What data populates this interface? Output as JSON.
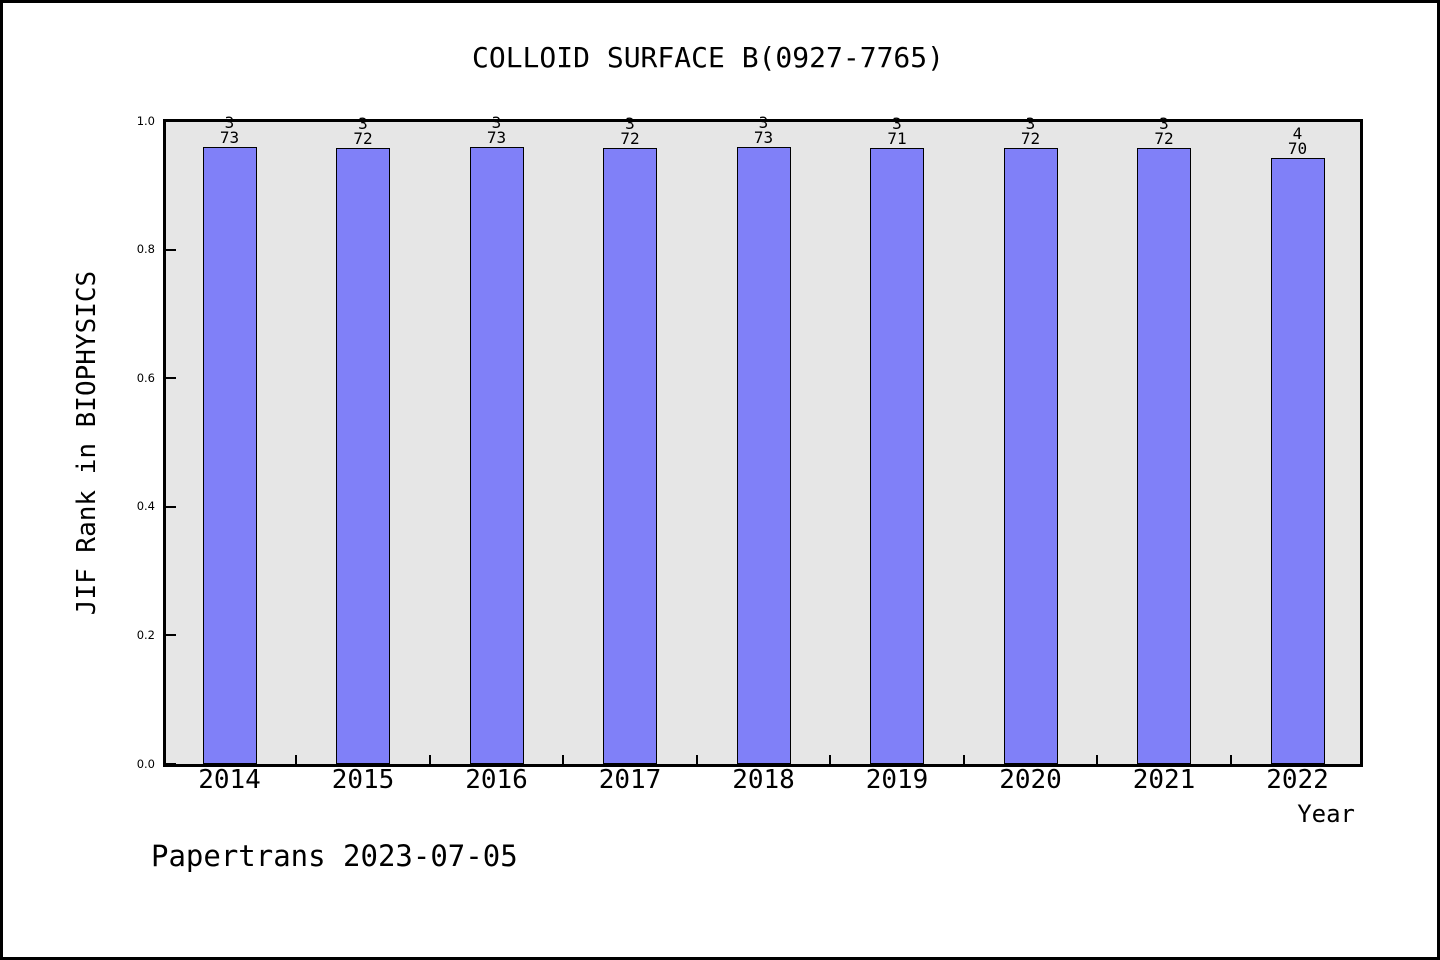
{
  "title": "COLLOID SURFACE B(0927-7765)",
  "footer": "Papertrans 2023-07-05",
  "chart_data": {
    "type": "bar",
    "title": "COLLOID SURFACE B(0927-7765)",
    "xlabel": "Year",
    "ylabel": "JIF Rank in BIOPHYSICS",
    "ylim": [
      0.0,
      1.0
    ],
    "grid": false,
    "legend_position": "none",
    "plot_bg": "#e6e6e6",
    "bar_color": "#8080f8",
    "bar_edge_color": "#000000",
    "yticks": [
      {
        "value": 0.0,
        "label": "0.0"
      },
      {
        "value": 0.2,
        "label": "0.2"
      },
      {
        "value": 0.4,
        "label": "0.4"
      },
      {
        "value": 0.6,
        "label": "0.6"
      },
      {
        "value": 0.8,
        "label": "0.8"
      },
      {
        "value": 1.0,
        "label": "1.0"
      }
    ],
    "categories": [
      "2014",
      "2015",
      "2016",
      "2017",
      "2018",
      "2019",
      "2020",
      "2021",
      "2022"
    ],
    "bars": [
      {
        "year": "2014",
        "rank": "3",
        "total": "73",
        "value": 0.9589
      },
      {
        "year": "2015",
        "rank": "3",
        "total": "72",
        "value": 0.9583
      },
      {
        "year": "2016",
        "rank": "3",
        "total": "73",
        "value": 0.9589
      },
      {
        "year": "2017",
        "rank": "3",
        "total": "72",
        "value": 0.9583
      },
      {
        "year": "2018",
        "rank": "3",
        "total": "73",
        "value": 0.9589
      },
      {
        "year": "2019",
        "rank": "3",
        "total": "71",
        "value": 0.9577
      },
      {
        "year": "2020",
        "rank": "3",
        "total": "72",
        "value": 0.9583
      },
      {
        "year": "2021",
        "rank": "3",
        "total": "72",
        "value": 0.9583
      },
      {
        "year": "2022",
        "rank": "4",
        "total": "70",
        "value": 0.9429
      }
    ]
  }
}
